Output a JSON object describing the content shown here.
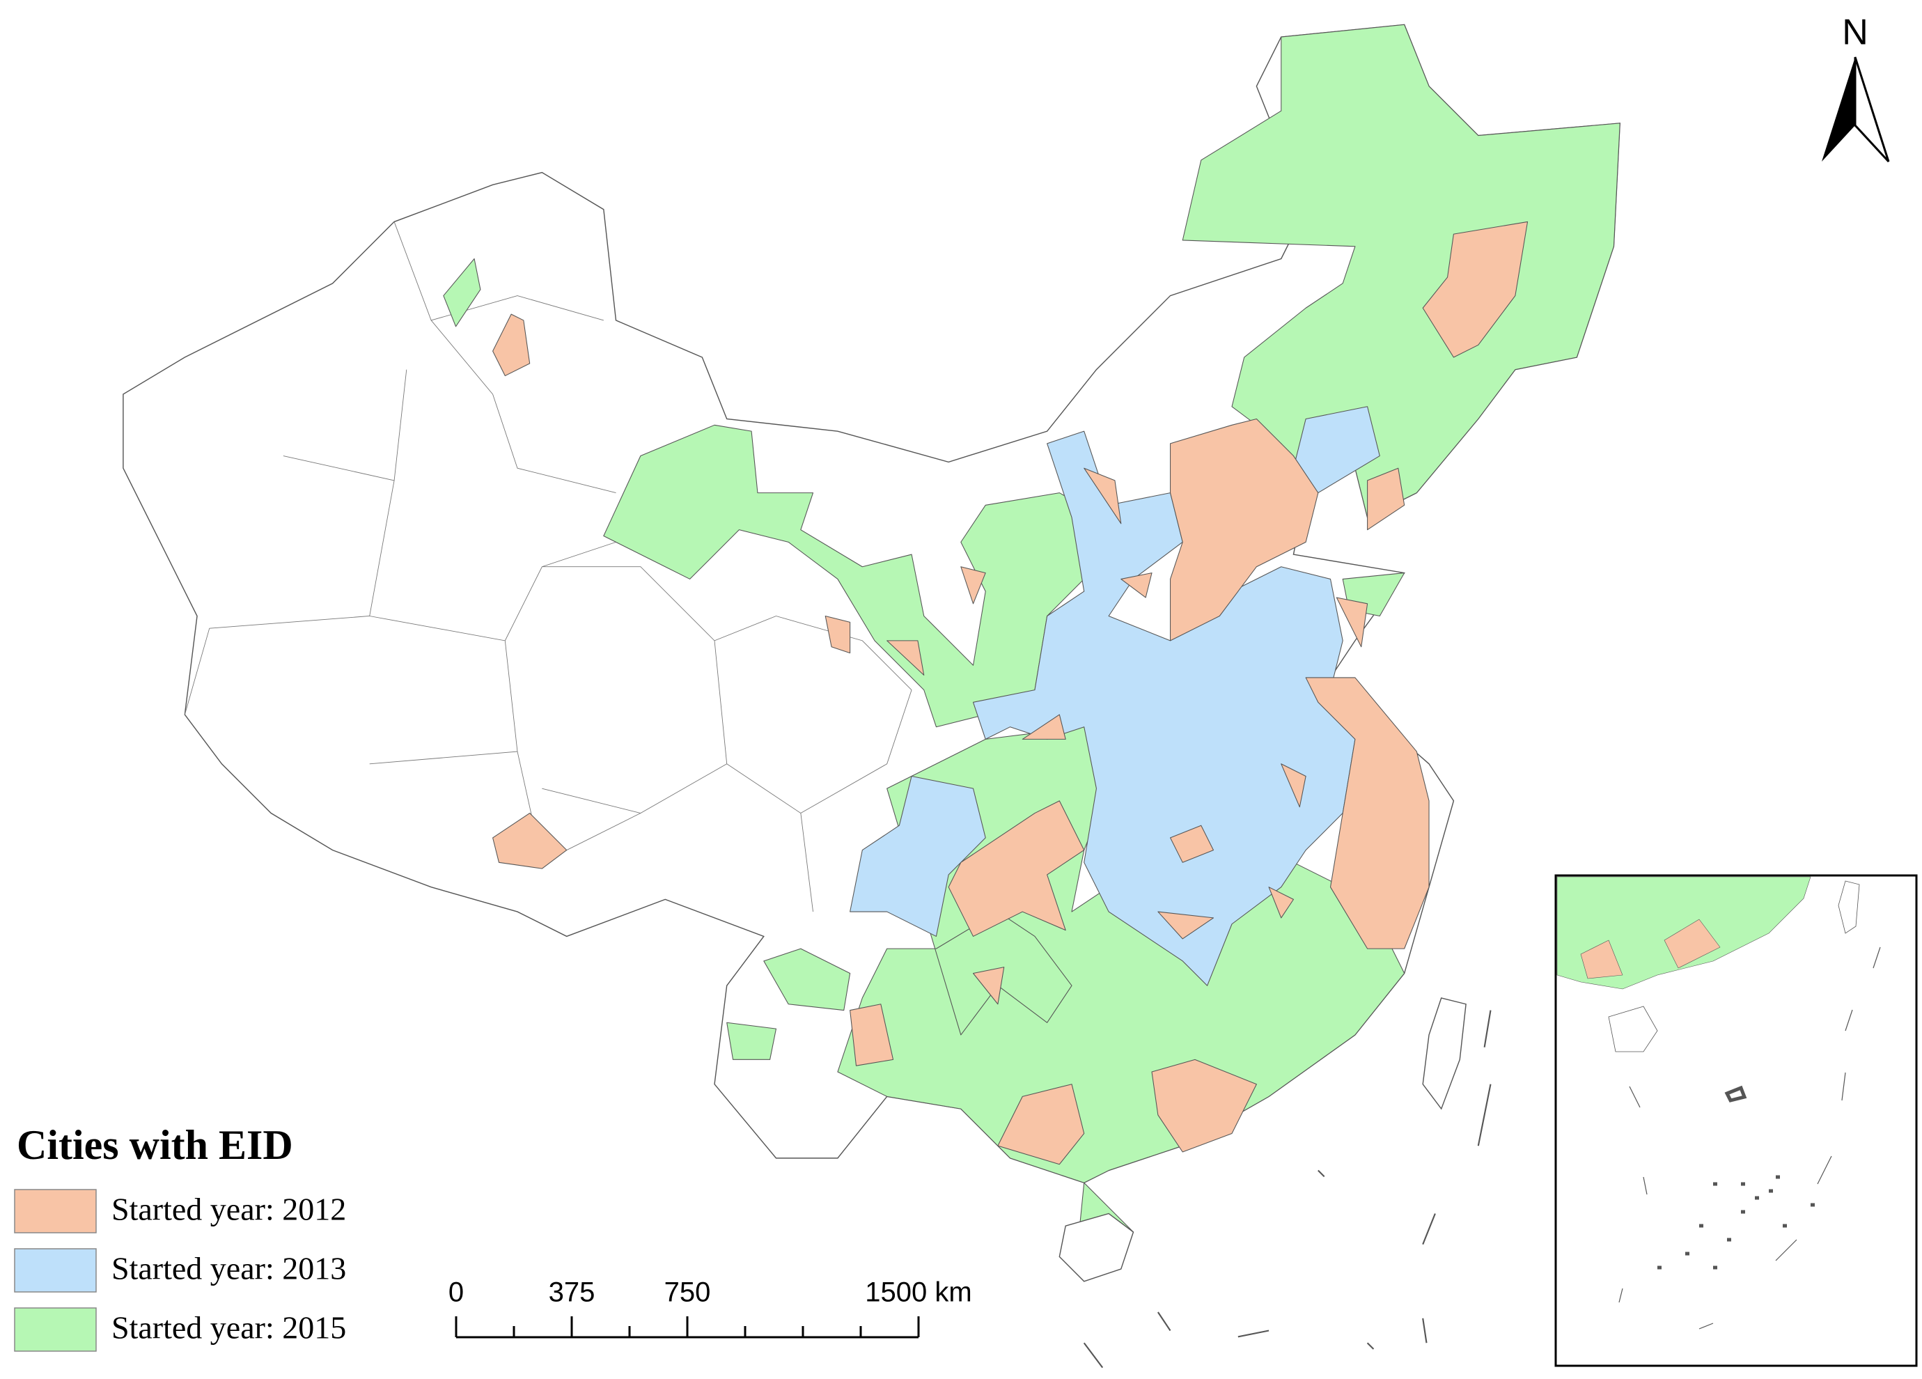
{
  "title": "Cities with EID",
  "legend": [
    {
      "label": "Started year: 2012",
      "color": "#f8c4a6"
    },
    {
      "label": "Started year: 2013",
      "color": "#bee0fa"
    },
    {
      "label": "Started year: 2015",
      "color": "#b6f7b4"
    }
  ],
  "north": "N",
  "scale_bar": {
    "ticks": [
      0,
      375,
      750,
      {
        "value": 1500,
        "label": "1500 km"
      }
    ]
  }
}
